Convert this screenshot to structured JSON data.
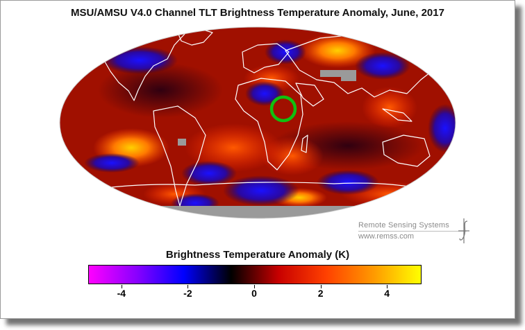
{
  "title": "MSU/AMSU V4.0 Channel TLT Brightness Temperature Anomaly, June, 2017",
  "credit": {
    "org": "Remote Sensing Systems",
    "url": "www.remss.com"
  },
  "legend": {
    "title": "Brightness Temperature Anomaly (K)",
    "range": [
      -5,
      5
    ],
    "ticks": [
      {
        "value": -4,
        "label": "-4"
      },
      {
        "value": -2,
        "label": "-2"
      },
      {
        "value": 0,
        "label": "0"
      },
      {
        "value": 2,
        "label": "2"
      },
      {
        "value": 4,
        "label": "4"
      }
    ],
    "colors": [
      "#ff00ff",
      "#8a00ff",
      "#0000ff",
      "#000000",
      "#c80000",
      "#ff4000",
      "#ff9900",
      "#ffff00"
    ]
  },
  "map": {
    "projection": "Mollweide",
    "no_data_color": "#9a9a9a",
    "highlight_color": "#10c010",
    "highlight_region": "East Africa / Sudan"
  }
}
